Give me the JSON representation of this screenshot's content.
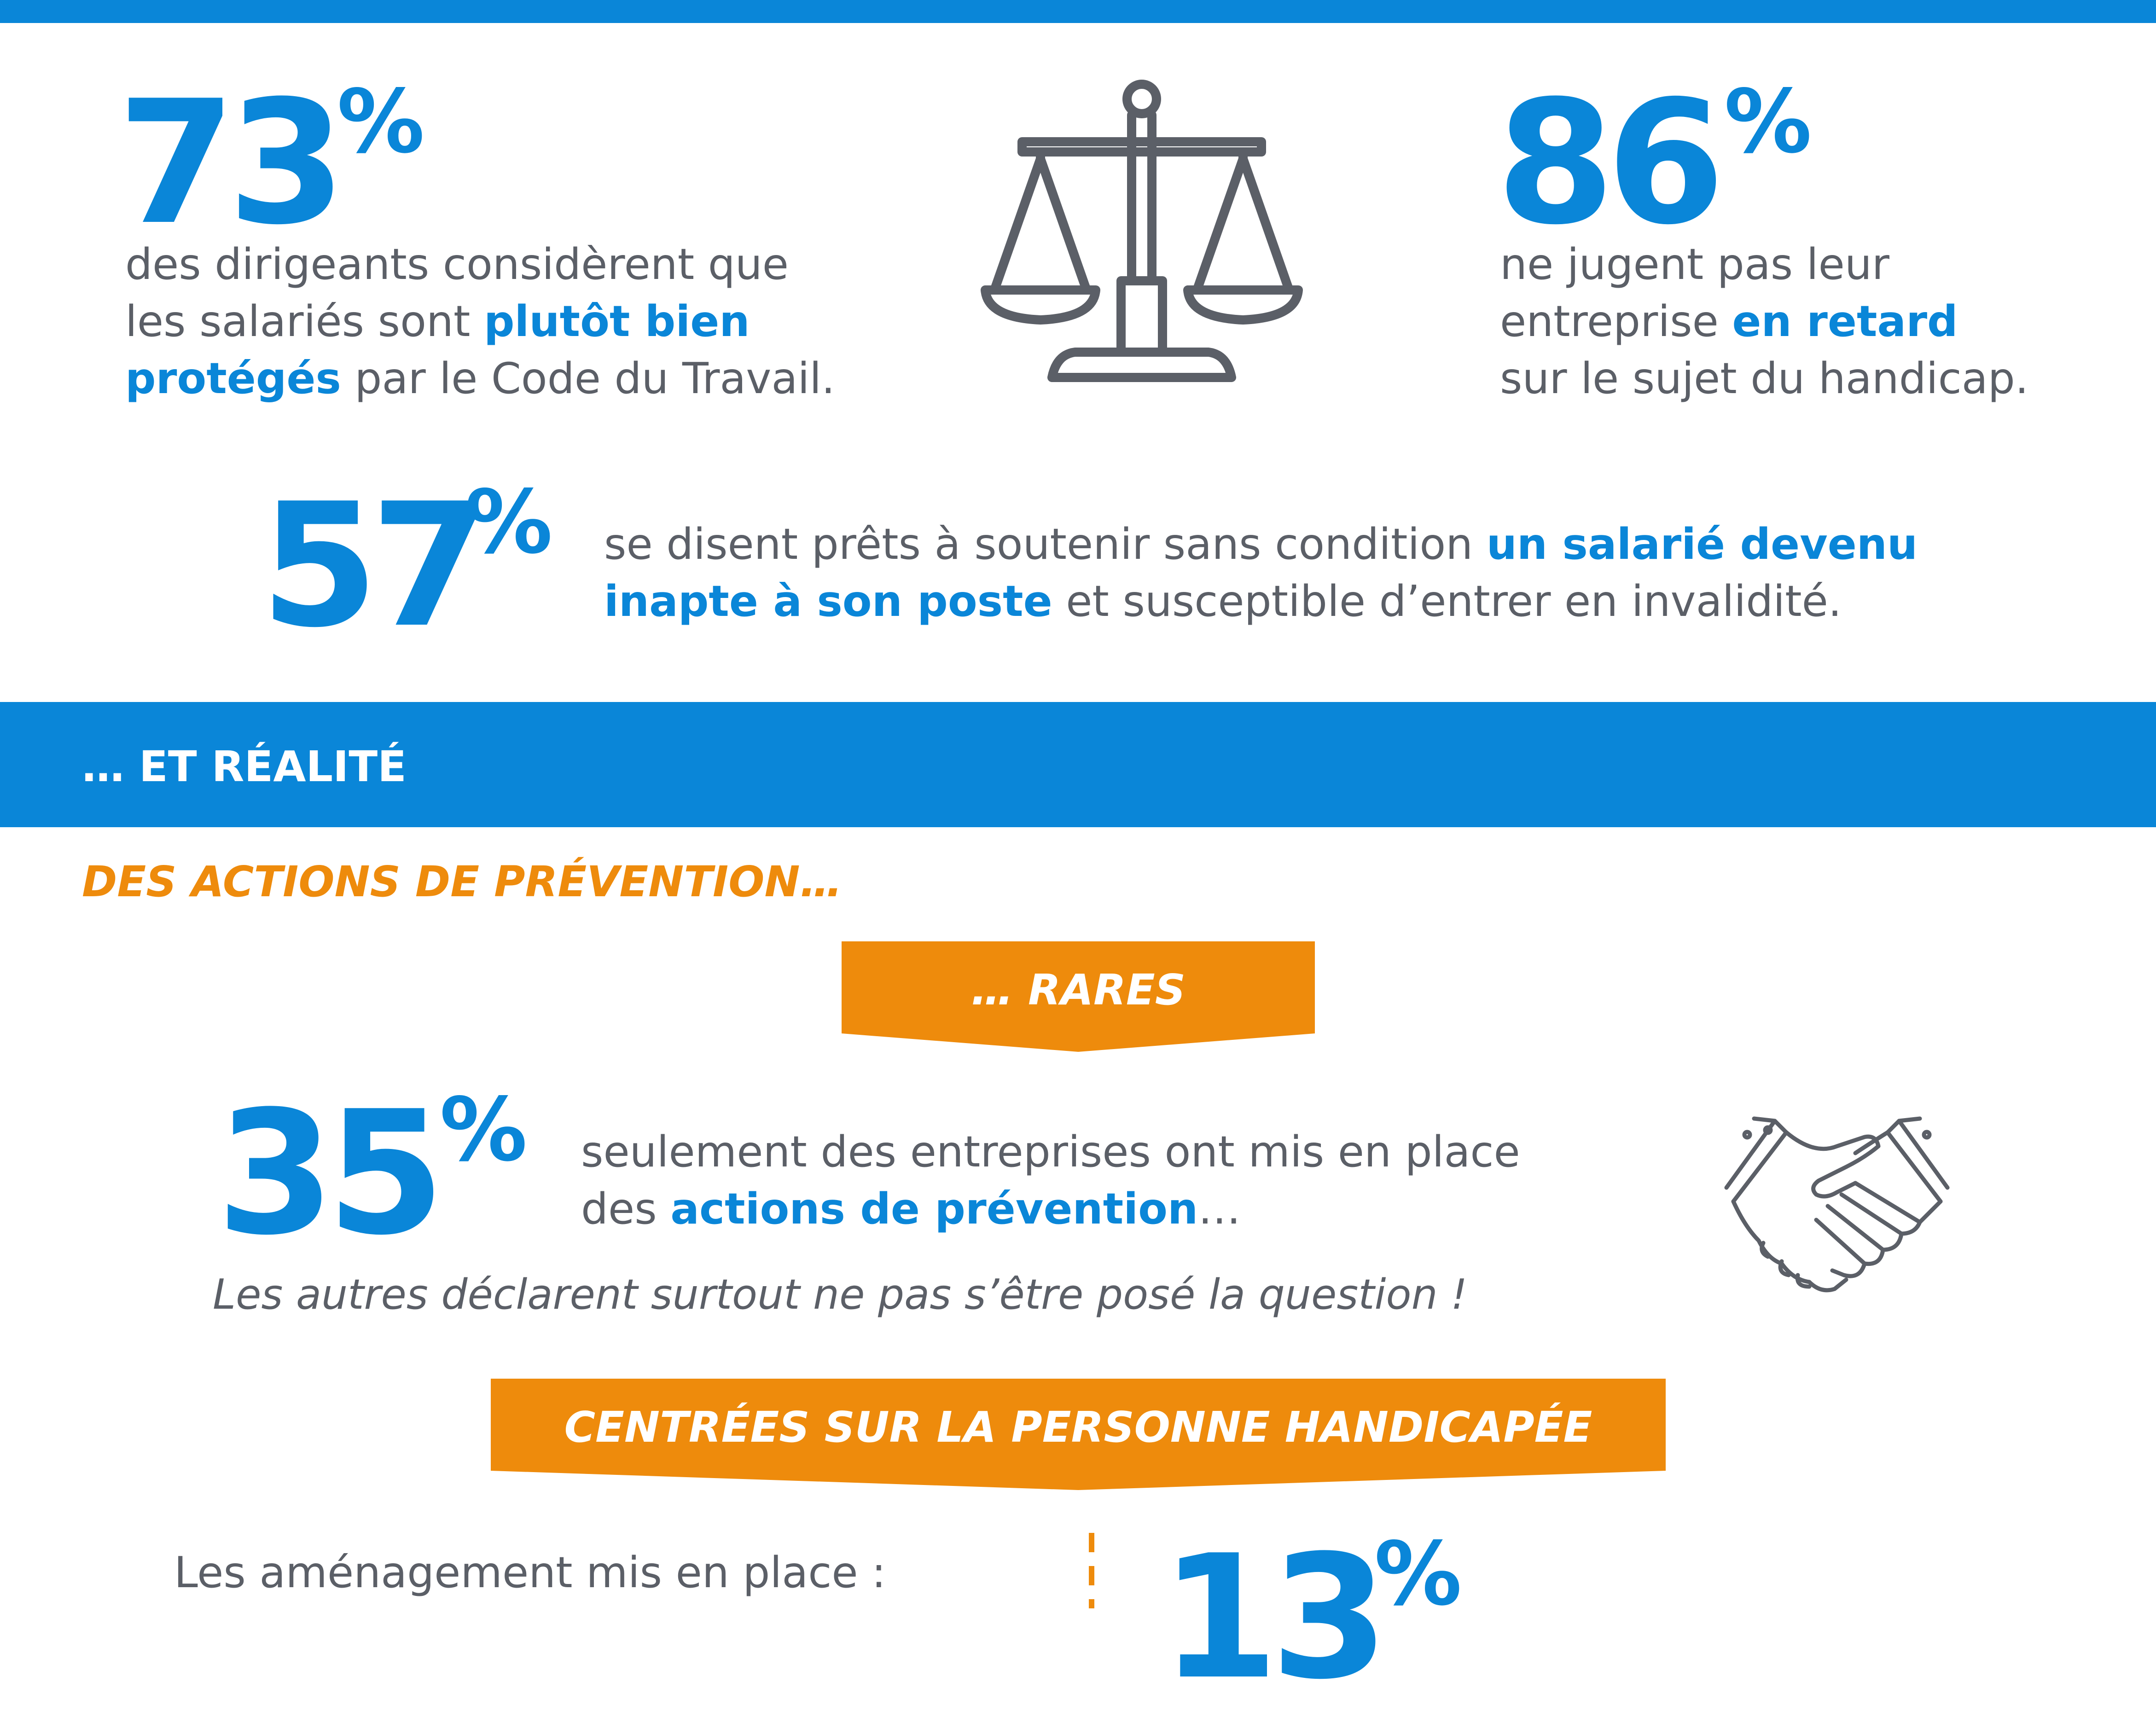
{
  "stats_top": {
    "left": {
      "number": "73",
      "percent": "%",
      "line1": "des dirigeants considèrent que",
      "line2_pre": "les salariés sont ",
      "line2_bold": "plutôt bien",
      "line3_bold": "protégés",
      "line3_post": " par le Code du Travail."
    },
    "right": {
      "number": "86",
      "percent": "%",
      "line1": "ne jugent pas leur",
      "line2_pre": "entreprise ",
      "line2_bold": "en retard",
      "line3": "sur le sujet du handicap."
    },
    "middle": {
      "number": "57",
      "percent": "%",
      "line1_pre": "se disent prêts à soutenir sans condition ",
      "line1_bold": "un salarié devenu",
      "line2_bold": "inapte à son poste",
      "line2_post": " et susceptible d’entrer en invalidité."
    }
  },
  "section_band": {
    "title": "… ET RÉALITÉ"
  },
  "prevention": {
    "heading": "DES ACTIONS DE PRÉVENTION…",
    "ribbon_rares": "… RARES",
    "stat": {
      "number": "35",
      "percent": "%",
      "line1": "seulement des entreprises ont mis en place",
      "line2_pre": "des ",
      "line2_bold": "actions de prévention",
      "line2_post": "…"
    },
    "note": "Les autres déclarent surtout ne pas s’être posé la question !",
    "ribbon_centrees": "CENTRÉES SUR LA PERSONNE HANDICAPÉE",
    "amenagement_label": "Les aménagement mis en place :",
    "partial_number": "13",
    "partial_percent": "%"
  },
  "colors": {
    "blue": "#0a86d8",
    "orange": "#ee8b0c",
    "grey": "#5b5f67"
  },
  "icons": [
    "scale-icon",
    "handshake-icon"
  ]
}
